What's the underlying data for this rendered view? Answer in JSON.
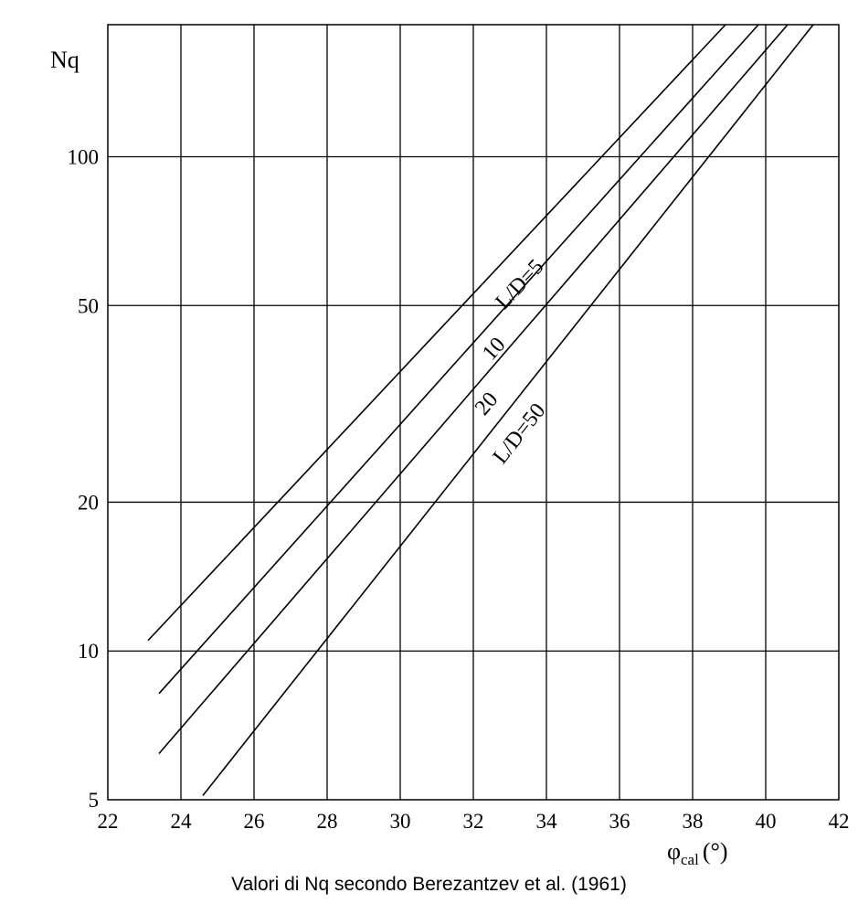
{
  "chart_data": {
    "type": "line",
    "title": "",
    "xlabel_main": "φ",
    "xlabel_sub": "cal",
    "xlabel_unit": "(°)",
    "ylabel": "Nq",
    "x_scale": "linear",
    "y_scale": "log",
    "xlim": [
      22,
      42
    ],
    "ylim": [
      5,
      185
    ],
    "x_ticks": [
      "22",
      "24",
      "26",
      "28",
      "30",
      "32",
      "34",
      "36",
      "38",
      "40",
      "42"
    ],
    "x_gridlines": [
      24,
      26,
      28,
      30,
      32,
      34,
      36,
      38,
      40
    ],
    "y_ticks": [
      {
        "value": 5,
        "label": "5"
      },
      {
        "value": 10,
        "label": "10"
      },
      {
        "value": 20,
        "label": "20"
      },
      {
        "value": 50,
        "label": "50"
      },
      {
        "value": 100,
        "label": "100"
      }
    ],
    "grid": true,
    "series": [
      {
        "name": "L/D=5",
        "label": "L/D=5",
        "label_phi": 33.4,
        "label_nq": 54,
        "points": [
          [
            23.1,
            10.5
          ],
          [
            38.9,
            185
          ]
        ]
      },
      {
        "name": "10",
        "label": "10",
        "label_phi": 32.7,
        "label_nq": 40,
        "points": [
          [
            23.4,
            8.2
          ],
          [
            39.8,
            185
          ]
        ]
      },
      {
        "name": "20",
        "label": "20",
        "label_phi": 32.5,
        "label_nq": 31,
        "points": [
          [
            23.4,
            6.2
          ],
          [
            40.6,
            185
          ]
        ]
      },
      {
        "name": "L/D=50",
        "label": "L/D=50",
        "label_phi": 33.4,
        "label_nq": 27,
        "points": [
          [
            24.6,
            5.1
          ],
          [
            41.3,
            185
          ]
        ]
      }
    ]
  },
  "caption": "Valori di Nq secondo Berezantzev et al. (1961)"
}
